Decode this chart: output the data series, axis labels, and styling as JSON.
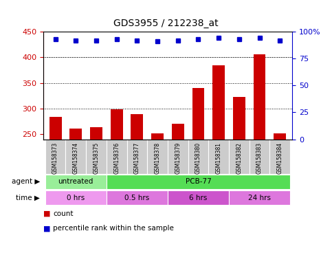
{
  "title": "GDS3955 / 212238_at",
  "samples": [
    "GSM158373",
    "GSM158374",
    "GSM158375",
    "GSM158376",
    "GSM158377",
    "GSM158378",
    "GSM158379",
    "GSM158380",
    "GSM158381",
    "GSM158382",
    "GSM158383",
    "GSM158384"
  ],
  "counts": [
    284,
    261,
    263,
    298,
    289,
    252,
    270,
    340,
    384,
    323,
    406,
    252
  ],
  "percentiles": [
    93,
    92,
    92,
    93,
    92,
    91,
    92,
    93,
    94,
    93,
    94,
    92
  ],
  "bar_color": "#cc0000",
  "dot_color": "#0000cc",
  "ylim_left": [
    240,
    450
  ],
  "ylim_right": [
    0,
    100
  ],
  "yticks_left": [
    250,
    300,
    350,
    400,
    450
  ],
  "yticks_right": [
    0,
    25,
    50,
    75,
    100
  ],
  "grid_values": [
    300,
    350,
    400
  ],
  "agent_labels": [
    {
      "text": "untreated",
      "start": 0,
      "end": 3,
      "color": "#99ee99"
    },
    {
      "text": "PCB-77",
      "start": 3,
      "end": 12,
      "color": "#55dd55"
    }
  ],
  "time_colors": [
    "#ee99ee",
    "#dd77dd",
    "#cc55cc",
    "#dd77dd"
  ],
  "time_labels": [
    {
      "text": "0 hrs",
      "start": 0,
      "end": 3
    },
    {
      "text": "0.5 hrs",
      "start": 3,
      "end": 6
    },
    {
      "text": "6 hrs",
      "start": 6,
      "end": 9
    },
    {
      "text": "24 hrs",
      "start": 9,
      "end": 12
    }
  ],
  "legend_count_color": "#cc0000",
  "legend_dot_color": "#0000cc",
  "label_bg": "#cccccc"
}
